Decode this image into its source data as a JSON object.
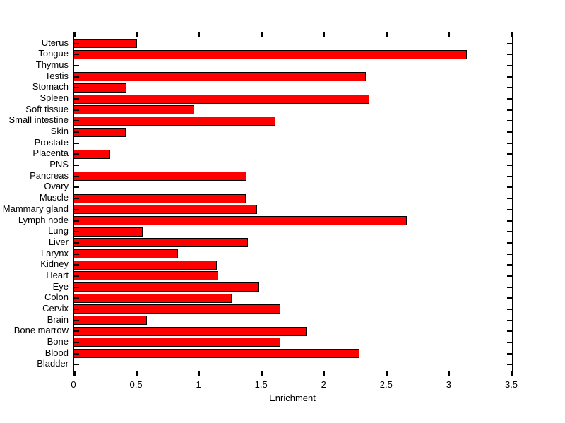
{
  "figure": {
    "background": "#FFFFFF"
  },
  "chart_data": {
    "type": "bar",
    "orientation": "horizontal",
    "title": "",
    "xlabel": "Enrichment",
    "ylabel": "",
    "categories_top_to_bottom": [
      "Uterus",
      "Tongue",
      "Thymus",
      "Testis",
      "Stomach",
      "Spleen",
      "Soft tissue",
      "Small intestine",
      "Skin",
      "Prostate",
      "Placenta",
      "PNS",
      "Pancreas",
      "Ovary",
      "Muscle",
      "Mammary gland",
      "Lymph node",
      "Lung",
      "Liver",
      "Larynx",
      "Kidney",
      "Heart",
      "Eye",
      "Colon",
      "Cervix",
      "Brain",
      "Bone marrow",
      "Bone",
      "Blood",
      "Bladder"
    ],
    "values": [
      0.5,
      3.14,
      0,
      2.33,
      0.42,
      2.36,
      0.96,
      1.61,
      0.41,
      0,
      0.29,
      0,
      1.38,
      0,
      1.37,
      1.46,
      2.66,
      0.55,
      1.39,
      0.83,
      1.14,
      1.15,
      1.48,
      1.26,
      1.65,
      0.58,
      1.86,
      1.65,
      2.28,
      0
    ],
    "xlim": [
      0,
      3.5
    ],
    "xticks": [
      0,
      0.5,
      1,
      1.5,
      2,
      2.5,
      3,
      3.5
    ],
    "xtick_labels": [
      "0",
      "0.5",
      "1",
      "1.5",
      "2",
      "2.5",
      "3",
      "3.5"
    ],
    "grid": false,
    "legend": null,
    "bar_color": "#FF0000",
    "bar_edge_color": "#000000",
    "axis_color": "#000000",
    "text_color": "#000000"
  }
}
